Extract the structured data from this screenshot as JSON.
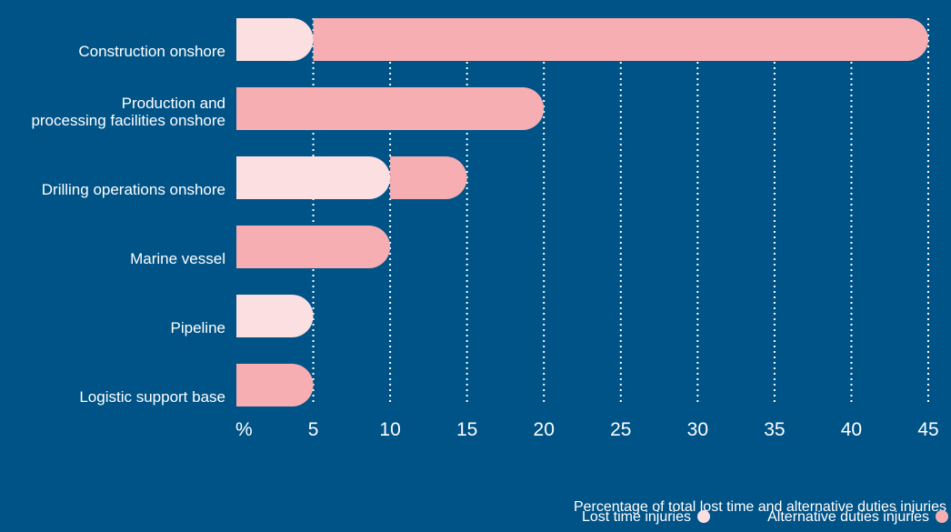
{
  "chart_data": {
    "type": "bar",
    "orientation": "horizontal",
    "stacked": true,
    "categories": [
      [
        "Construction onshore"
      ],
      [
        "Production and",
        "processing facilities onshore"
      ],
      [
        "Drilling operations onshore"
      ],
      [
        "Marine vessel"
      ],
      [
        "Pipeline"
      ],
      [
        "Logistic support base"
      ]
    ],
    "series": [
      {
        "name": "Lost time injuries",
        "color": "#fbdfe1",
        "values": [
          5,
          0,
          10,
          0,
          5,
          0
        ]
      },
      {
        "name": "Alternative duties injuries",
        "color": "#f6aeb3",
        "values": [
          40,
          20,
          5,
          10,
          0,
          5
        ]
      }
    ],
    "x_ticks": [
      "%",
      "5",
      "10",
      "15",
      "20",
      "25",
      "30",
      "35",
      "40",
      "45"
    ],
    "xlim": [
      0,
      45
    ],
    "xlabel": "Percentage of total lost time and alternative duties injuries",
    "grid": "vertical dotted",
    "legend_position": "bottom-right",
    "background_color": "#005387",
    "gridline_color": "#ffffff"
  }
}
